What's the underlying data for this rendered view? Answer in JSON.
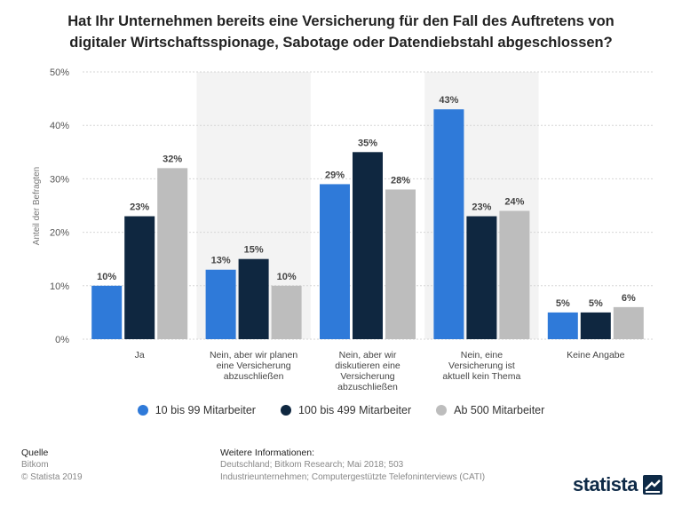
{
  "title_lines": [
    "Hat Ihr Unternehmen bereits eine Versicherung für den Fall des Auftretens von",
    "digitaler Wirtschaftsspionage, Sabotage oder Datendiebstahl abgeschlossen?"
  ],
  "colors": {
    "series1": "#2f7ad9",
    "series2": "#0f2740",
    "series3": "#bdbdbd",
    "band": "#f3f3f3",
    "grid": "#d6d6d6"
  },
  "chart_data": {
    "type": "bar",
    "title": "Hat Ihr Unternehmen bereits eine Versicherung für den Fall des Auftretens von digitaler Wirtschaftsspionage, Sabotage oder Datendiebstahl abgeschlossen?",
    "ylabel": "Anteil der Befragten",
    "xlabel": "",
    "ylim": [
      0,
      50
    ],
    "yticks": [
      "0%",
      "10%",
      "20%",
      "30%",
      "40%",
      "50%"
    ],
    "categories": [
      [
        "Ja"
      ],
      [
        "Nein, aber wir planen",
        "eine Versicherung",
        "abzuschließen"
      ],
      [
        "Nein, aber wir",
        "diskutieren eine",
        "Versicherung",
        "abzuschließen"
      ],
      [
        "Nein, eine",
        "Versicherung ist",
        "aktuell kein Thema"
      ],
      [
        "Keine Angabe"
      ]
    ],
    "series": [
      {
        "name": "10 bis 99 Mitarbeiter",
        "values": [
          10,
          13,
          29,
          43,
          5
        ],
        "labels": [
          "10%",
          "13%",
          "29%",
          "43%",
          "5%"
        ]
      },
      {
        "name": "100 bis 499 Mitarbeiter",
        "values": [
          23,
          15,
          35,
          23,
          5
        ],
        "labels": [
          "23%",
          "15%",
          "35%",
          "23%",
          "5%"
        ]
      },
      {
        "name": "Ab 500 Mitarbeiter",
        "values": [
          32,
          10,
          28,
          24,
          6
        ],
        "labels": [
          "32%",
          "10%",
          "28%",
          "24%",
          "6%"
        ]
      }
    ],
    "legend_position": "bottom",
    "grid": true
  },
  "footer": {
    "source_heading": "Quelle",
    "source_lines": [
      "Bitkom",
      "© Statista 2019"
    ],
    "info_heading": "Weitere Informationen:",
    "info_lines": [
      "Deutschland; Bitkom Research; Mai 2018; 503",
      "Industrieunternehmen; Computergestützte Telefoninterviews (CATI)"
    ]
  },
  "logo_text": "statista"
}
